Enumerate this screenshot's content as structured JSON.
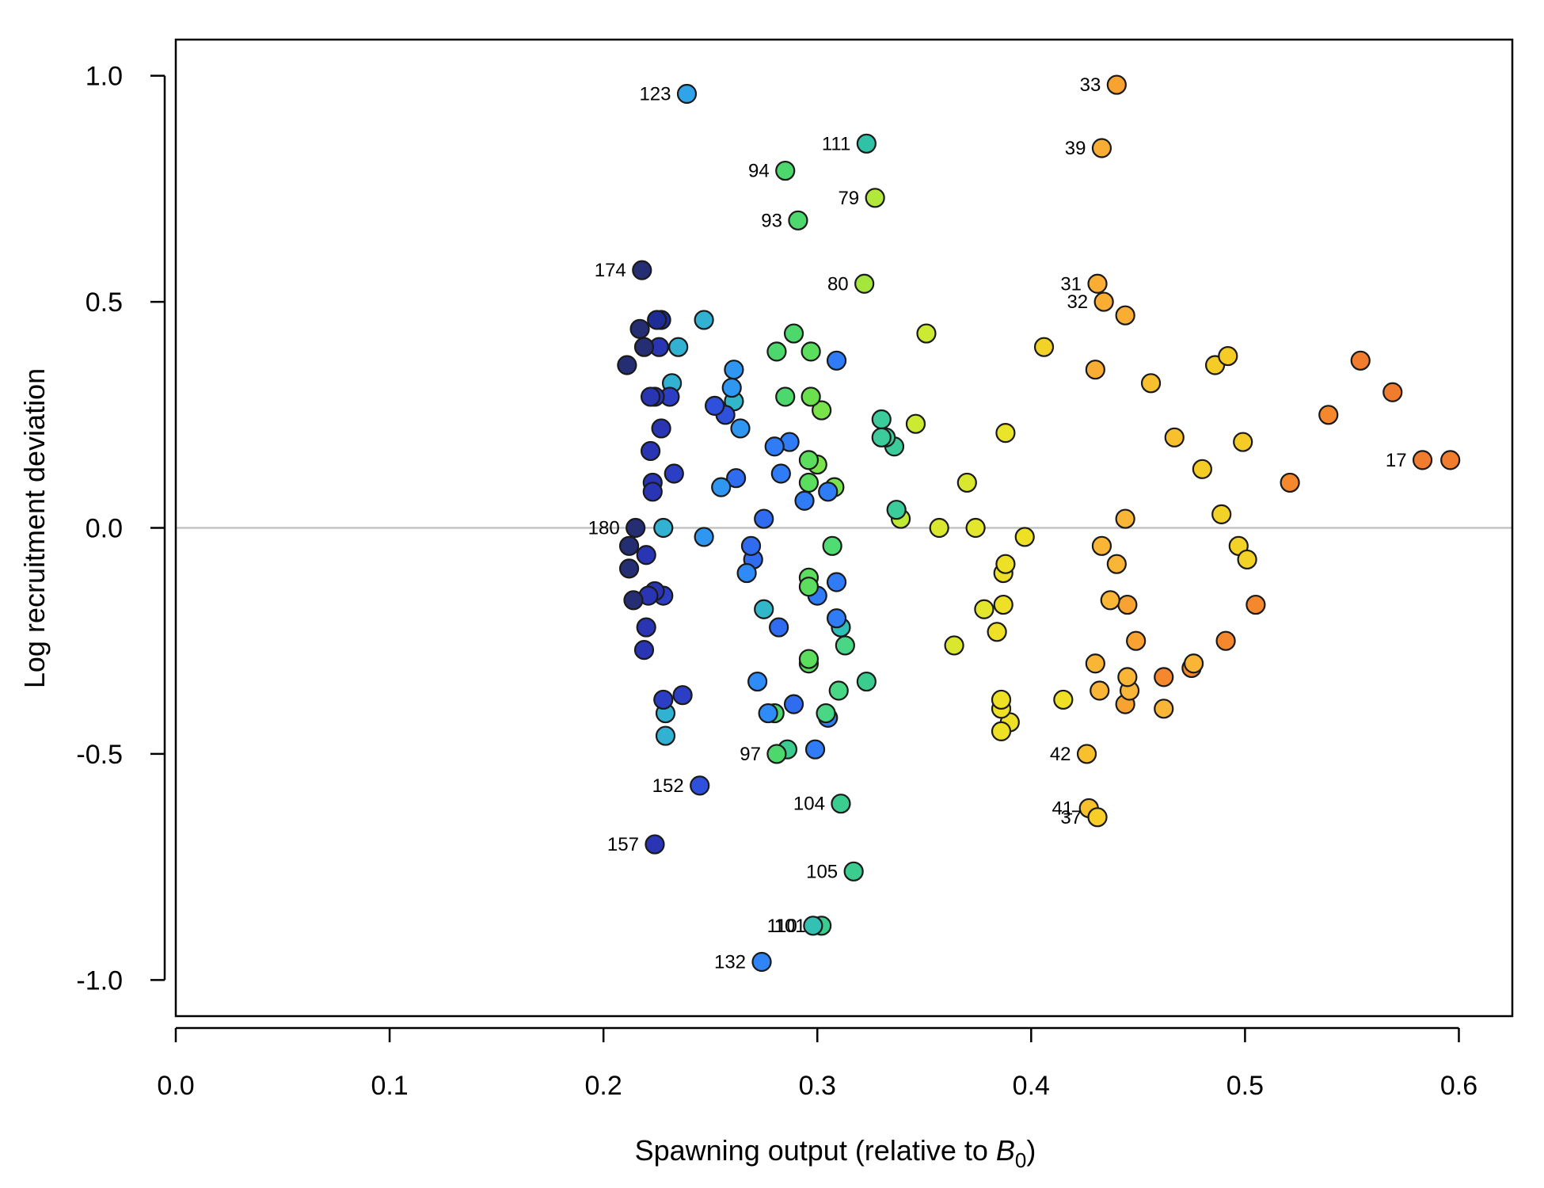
{
  "chart_data": {
    "type": "scatter",
    "xlabel": "Spawning output (relative to B0)",
    "xlabel_parts": {
      "text": "Spawning output (relative to ",
      "var": "B",
      "sub": "0",
      "close": ")"
    },
    "ylabel": "Log recruitment deviation",
    "xlim": [
      0,
      0.625
    ],
    "ylim": [
      -1.08,
      1.08
    ],
    "x_ticks": [
      0,
      0.1,
      0.2,
      0.3,
      0.4,
      0.5,
      0.6
    ],
    "x_tick_labels": [
      "0.0",
      "0.1",
      "0.2",
      "0.3",
      "0.4",
      "0.5",
      "0.6"
    ],
    "y_ticks": [
      -1,
      -0.5,
      0,
      0.5,
      1
    ],
    "y_tick_labels": [
      "-1.0",
      "-0.5",
      "0.0",
      "0.5",
      "1.0"
    ],
    "reference_line_y": 0,
    "reference_line_color": "#bebebe",
    "grid": false,
    "color_scale": "index gradient: dark navy (high index) to blue, cyan, green, yellow, orange (low index)",
    "points": [
      {
        "x": 0.596,
        "y": 0.15,
        "color": "#F27C2E"
      },
      {
        "x": 0.583,
        "y": 0.15,
        "color": "#F27C2E",
        "label": "17"
      },
      {
        "x": 0.569,
        "y": 0.3,
        "color": "#F27C2E"
      },
      {
        "x": 0.554,
        "y": 0.37,
        "color": "#F27C2E"
      },
      {
        "x": 0.539,
        "y": 0.25,
        "color": "#F5882C"
      },
      {
        "x": 0.521,
        "y": 0.1,
        "color": "#F5882C"
      },
      {
        "x": 0.505,
        "y": -0.17,
        "color": "#F5882C"
      },
      {
        "x": 0.491,
        "y": -0.25,
        "color": "#F5882C"
      },
      {
        "x": 0.475,
        "y": -0.31,
        "color": "#F5882C"
      },
      {
        "x": 0.462,
        "y": -0.33,
        "color": "#F5882C"
      },
      {
        "x": 0.449,
        "y": -0.25,
        "color": "#F8A331"
      },
      {
        "x": 0.444,
        "y": -0.39,
        "color": "#F8A331"
      },
      {
        "x": 0.445,
        "y": -0.17,
        "color": "#F8A331"
      },
      {
        "x": 0.44,
        "y": 0.98,
        "color": "#F8A331",
        "label": "33"
      },
      {
        "x": 0.433,
        "y": 0.84,
        "color": "#F9AE33",
        "label": "39"
      },
      {
        "x": 0.444,
        "y": 0.47,
        "color": "#F9AE33"
      },
      {
        "x": 0.434,
        "y": 0.5,
        "color": "#F9AE33",
        "label": "32"
      },
      {
        "x": 0.431,
        "y": 0.54,
        "color": "#F9AE33",
        "label": "31"
      },
      {
        "x": 0.43,
        "y": 0.35,
        "color": "#F9AE33"
      },
      {
        "x": 0.444,
        "y": 0.02,
        "color": "#F9B535"
      },
      {
        "x": 0.44,
        "y": -0.08,
        "color": "#F9B535"
      },
      {
        "x": 0.437,
        "y": -0.16,
        "color": "#F9B535"
      },
      {
        "x": 0.433,
        "y": -0.04,
        "color": "#F9B535"
      },
      {
        "x": 0.446,
        "y": -0.36,
        "color": "#F9B535"
      },
      {
        "x": 0.445,
        "y": -0.33,
        "color": "#F9B535"
      },
      {
        "x": 0.432,
        "y": -0.36,
        "color": "#F9B535"
      },
      {
        "x": 0.43,
        "y": -0.3,
        "color": "#F9B535"
      },
      {
        "x": 0.426,
        "y": -0.5,
        "color": "#F9C02E",
        "label": "42"
      },
      {
        "x": 0.427,
        "y": -0.62,
        "color": "#F9C02E",
        "label": "41"
      },
      {
        "x": 0.431,
        "y": -0.64,
        "color": "#F7CE28",
        "label": "37"
      },
      {
        "x": 0.462,
        "y": -0.4,
        "color": "#F9B535"
      },
      {
        "x": 0.476,
        "y": -0.3,
        "color": "#F9B535"
      },
      {
        "x": 0.456,
        "y": 0.32,
        "color": "#F9C02E"
      },
      {
        "x": 0.467,
        "y": 0.2,
        "color": "#F9C02E"
      },
      {
        "x": 0.48,
        "y": 0.13,
        "color": "#F5CB25"
      },
      {
        "x": 0.486,
        "y": 0.36,
        "color": "#F5CB25"
      },
      {
        "x": 0.492,
        "y": 0.38,
        "color": "#F5CB25"
      },
      {
        "x": 0.499,
        "y": 0.19,
        "color": "#F5CB25"
      },
      {
        "x": 0.489,
        "y": 0.03,
        "color": "#F3D227"
      },
      {
        "x": 0.497,
        "y": -0.04,
        "color": "#F3D227"
      },
      {
        "x": 0.501,
        "y": -0.07,
        "color": "#F3D227"
      },
      {
        "x": 0.406,
        "y": 0.4,
        "color": "#F3D227"
      },
      {
        "x": 0.415,
        "y": -0.38,
        "color": "#EEE125"
      },
      {
        "x": 0.397,
        "y": -0.02,
        "color": "#EEE125"
      },
      {
        "x": 0.39,
        "y": -0.43,
        "color": "#EEE125"
      },
      {
        "x": 0.386,
        "y": -0.45,
        "color": "#EEE125"
      },
      {
        "x": 0.386,
        "y": -0.4,
        "color": "#EEE125"
      },
      {
        "x": 0.386,
        "y": -0.38,
        "color": "#EEE125"
      },
      {
        "x": 0.387,
        "y": -0.17,
        "color": "#EEE125"
      },
      {
        "x": 0.387,
        "y": -0.1,
        "color": "#EEE125"
      },
      {
        "x": 0.388,
        "y": -0.08,
        "color": "#EEE125"
      },
      {
        "x": 0.384,
        "y": -0.23,
        "color": "#EEE125"
      },
      {
        "x": 0.388,
        "y": 0.21,
        "color": "#EAE52A"
      },
      {
        "x": 0.378,
        "y": -0.18,
        "color": "#E2E72D"
      },
      {
        "x": 0.374,
        "y": 0.0,
        "color": "#E2E72D"
      },
      {
        "x": 0.37,
        "y": 0.1,
        "color": "#D9E82F"
      },
      {
        "x": 0.364,
        "y": -0.26,
        "color": "#D9E82F"
      },
      {
        "x": 0.357,
        "y": 0.0,
        "color": "#D9E82F"
      },
      {
        "x": 0.351,
        "y": 0.43,
        "color": "#CDEA33"
      },
      {
        "x": 0.346,
        "y": 0.23,
        "color": "#CDEA33"
      },
      {
        "x": 0.339,
        "y": 0.02,
        "color": "#BFE935"
      },
      {
        "x": 0.337,
        "y": 0.04,
        "color": "#3CCB9A"
      },
      {
        "x": 0.336,
        "y": 0.18,
        "color": "#3CCB9A"
      },
      {
        "x": 0.332,
        "y": 0.2,
        "color": "#3CCB9A"
      },
      {
        "x": 0.33,
        "y": 0.24,
        "color": "#3CCB9A"
      },
      {
        "x": 0.33,
        "y": 0.2,
        "color": "#3CCB9A"
      },
      {
        "x": 0.327,
        "y": 0.73,
        "color": "#B2E83A",
        "label": "79"
      },
      {
        "x": 0.322,
        "y": 0.54,
        "color": "#A5E63C",
        "label": "80"
      },
      {
        "x": 0.323,
        "y": 0.85,
        "color": "#2FC2A6",
        "label": "111"
      },
      {
        "x": 0.323,
        "y": -0.34,
        "color": "#3BCD8F"
      },
      {
        "x": 0.317,
        "y": -0.76,
        "color": "#3BCD8F",
        "label": "105"
      },
      {
        "x": 0.311,
        "y": -0.61,
        "color": "#3BCD8F",
        "label": "104"
      },
      {
        "x": 0.313,
        "y": -0.26,
        "color": "#49D685"
      },
      {
        "x": 0.31,
        "y": -0.36,
        "color": "#49D685"
      },
      {
        "x": 0.311,
        "y": -0.22,
        "color": "#30BFB8"
      },
      {
        "x": 0.309,
        "y": -0.12,
        "color": "#2F7CF6"
      },
      {
        "x": 0.309,
        "y": -0.2,
        "color": "#2F7CF6"
      },
      {
        "x": 0.309,
        "y": 0.37,
        "color": "#2F7CF6"
      },
      {
        "x": 0.307,
        "y": -0.04,
        "color": "#4FDC73"
      },
      {
        "x": 0.308,
        "y": 0.09,
        "color": "#7BE24F"
      },
      {
        "x": 0.305,
        "y": -0.42,
        "color": "#2F7CF6"
      },
      {
        "x": 0.305,
        "y": 0.08,
        "color": "#2F7CF6"
      },
      {
        "x": 0.304,
        "y": -0.41,
        "color": "#49D685"
      },
      {
        "x": 0.302,
        "y": 0.26,
        "color": "#79E34A"
      },
      {
        "x": 0.3,
        "y": -0.15,
        "color": "#2F7CF6"
      },
      {
        "x": 0.3,
        "y": 0.14,
        "color": "#79E34A"
      },
      {
        "x": 0.302,
        "y": -0.88,
        "color": "#3BCD8F",
        "label": "101"
      },
      {
        "x": 0.298,
        "y": -0.88,
        "color": "#33C1B4",
        "label": "110"
      },
      {
        "x": 0.299,
        "y": -0.49,
        "color": "#2F7CF6"
      },
      {
        "x": 0.297,
        "y": 0.29,
        "color": "#6BE04E"
      },
      {
        "x": 0.297,
        "y": 0.39,
        "color": "#5BDE5E"
      },
      {
        "x": 0.296,
        "y": -0.11,
        "color": "#5BDE5E"
      },
      {
        "x": 0.296,
        "y": -0.13,
        "color": "#5BDE5E"
      },
      {
        "x": 0.296,
        "y": -0.3,
        "color": "#5BDE5E"
      },
      {
        "x": 0.296,
        "y": -0.29,
        "color": "#5BDE5E"
      },
      {
        "x": 0.296,
        "y": 0.15,
        "color": "#5BDE5E"
      },
      {
        "x": 0.296,
        "y": 0.1,
        "color": "#5BDE5E"
      },
      {
        "x": 0.294,
        "y": 0.06,
        "color": "#2F7CF6"
      },
      {
        "x": 0.291,
        "y": 0.68,
        "color": "#4CD86D",
        "label": "93"
      },
      {
        "x": 0.289,
        "y": 0.43,
        "color": "#4CD86D"
      },
      {
        "x": 0.289,
        "y": -0.39,
        "color": "#2F6CF0"
      },
      {
        "x": 0.287,
        "y": 0.19,
        "color": "#2F7CF6"
      },
      {
        "x": 0.286,
        "y": -0.49,
        "color": "#3BCD8F"
      },
      {
        "x": 0.285,
        "y": 0.79,
        "color": "#4CD86D",
        "label": "94"
      },
      {
        "x": 0.285,
        "y": 0.29,
        "color": "#4CD86D"
      },
      {
        "x": 0.283,
        "y": 0.12,
        "color": "#2F7CF6"
      },
      {
        "x": 0.282,
        "y": -0.22,
        "color": "#2F6CF0"
      },
      {
        "x": 0.281,
        "y": 0.39,
        "color": "#4CD86D"
      },
      {
        "x": 0.281,
        "y": -0.5,
        "color": "#4CD86D",
        "label": "97"
      },
      {
        "x": 0.28,
        "y": 0.18,
        "color": "#2F7CF6"
      },
      {
        "x": 0.28,
        "y": -0.41,
        "color": "#4CD86D"
      },
      {
        "x": 0.277,
        "y": -0.41,
        "color": "#2F8BF7"
      },
      {
        "x": 0.275,
        "y": -0.18,
        "color": "#31B7C9"
      },
      {
        "x": 0.275,
        "y": 0.02,
        "color": "#2F6CF0"
      },
      {
        "x": 0.274,
        "y": -0.96,
        "color": "#2F85F6",
        "label": "132"
      },
      {
        "x": 0.272,
        "y": -0.34,
        "color": "#2F8BF7"
      },
      {
        "x": 0.27,
        "y": -0.07,
        "color": "#2F6CF0"
      },
      {
        "x": 0.269,
        "y": -0.04,
        "color": "#2F6CF0"
      },
      {
        "x": 0.267,
        "y": -0.1,
        "color": "#2F8BF7"
      },
      {
        "x": 0.264,
        "y": 0.22,
        "color": "#2F97F2"
      },
      {
        "x": 0.262,
        "y": 0.11,
        "color": "#2F6CF0"
      },
      {
        "x": 0.261,
        "y": 0.28,
        "color": "#31B7C9"
      },
      {
        "x": 0.261,
        "y": 0.35,
        "color": "#2F97F2"
      },
      {
        "x": 0.26,
        "y": 0.31,
        "color": "#2F97F2"
      },
      {
        "x": 0.257,
        "y": 0.25,
        "color": "#2F4FDD"
      },
      {
        "x": 0.255,
        "y": 0.09,
        "color": "#2F97F2"
      },
      {
        "x": 0.252,
        "y": 0.27,
        "color": "#2F4FDD"
      },
      {
        "x": 0.247,
        "y": 0.46,
        "color": "#31B2D3"
      },
      {
        "x": 0.247,
        "y": -0.02,
        "color": "#2F97F2"
      },
      {
        "x": 0.245,
        "y": -0.57,
        "color": "#2F4FDD",
        "label": "152"
      },
      {
        "x": 0.239,
        "y": 0.96,
        "color": "#2FA4E8",
        "label": "123"
      },
      {
        "x": 0.237,
        "y": -0.37,
        "color": "#2C3EC4"
      },
      {
        "x": 0.235,
        "y": 0.4,
        "color": "#31B2D3"
      },
      {
        "x": 0.233,
        "y": 0.12,
        "color": "#2C3EC4"
      },
      {
        "x": 0.232,
        "y": 0.32,
        "color": "#31B2D3"
      },
      {
        "x": 0.231,
        "y": 0.29,
        "color": "#2C3EC4"
      },
      {
        "x": 0.229,
        "y": -0.41,
        "color": "#31B2D3"
      },
      {
        "x": 0.229,
        "y": -0.46,
        "color": "#31B2D3"
      },
      {
        "x": 0.228,
        "y": 0.0,
        "color": "#31B2D3"
      },
      {
        "x": 0.228,
        "y": -0.38,
        "color": "#2C3EC4"
      },
      {
        "x": 0.228,
        "y": -0.15,
        "color": "#2C3EC4"
      },
      {
        "x": 0.227,
        "y": 0.46,
        "color": "#1E2C96"
      },
      {
        "x": 0.227,
        "y": 0.22,
        "color": "#2935B2"
      },
      {
        "x": 0.226,
        "y": 0.4,
        "color": "#2935B2"
      },
      {
        "x": 0.225,
        "y": 0.46,
        "color": "#1E2C96"
      },
      {
        "x": 0.224,
        "y": -0.7,
        "color": "#2935B2",
        "label": "157"
      },
      {
        "x": 0.224,
        "y": -0.14,
        "color": "#2935B2"
      },
      {
        "x": 0.224,
        "y": 0.29,
        "color": "#2935B2"
      },
      {
        "x": 0.223,
        "y": 0.1,
        "color": "#2935B2"
      },
      {
        "x": 0.223,
        "y": 0.08,
        "color": "#2935B2"
      },
      {
        "x": 0.222,
        "y": 0.17,
        "color": "#2935B2"
      },
      {
        "x": 0.222,
        "y": 0.29,
        "color": "#2935B2"
      },
      {
        "x": 0.221,
        "y": -0.15,
        "color": "#2935B2"
      },
      {
        "x": 0.22,
        "y": -0.22,
        "color": "#2935B2"
      },
      {
        "x": 0.22,
        "y": -0.06,
        "color": "#2935B2"
      },
      {
        "x": 0.219,
        "y": -0.27,
        "color": "#2935B2"
      },
      {
        "x": 0.219,
        "y": 0.4,
        "color": "#262E73"
      },
      {
        "x": 0.218,
        "y": 0.57,
        "color": "#262E73",
        "label": "174"
      },
      {
        "x": 0.217,
        "y": 0.44,
        "color": "#262E73"
      },
      {
        "x": 0.215,
        "y": 0.0,
        "color": "#262E73",
        "label": "180"
      },
      {
        "x": 0.214,
        "y": -0.16,
        "color": "#262E73"
      },
      {
        "x": 0.212,
        "y": -0.09,
        "color": "#262E73"
      },
      {
        "x": 0.212,
        "y": -0.04,
        "color": "#262E73"
      },
      {
        "x": 0.211,
        "y": 0.36,
        "color": "#262E73"
      }
    ]
  }
}
